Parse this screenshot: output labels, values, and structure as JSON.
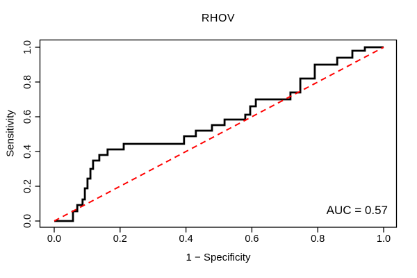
{
  "chart_data": {
    "type": "line",
    "title": "RHOV",
    "xlabel": "1 − Specificity",
    "ylabel": "Sensitivity",
    "annotation": "AUC = 0.57",
    "auc_value": 0.57,
    "xlim": [
      0.0,
      1.0
    ],
    "ylim": [
      0.0,
      1.0
    ],
    "grid": false,
    "legend_position": "none",
    "background_color": "#ffffff",
    "axis_color": "#000000",
    "x_ticks": {
      "values": [
        0.0,
        0.2,
        0.4,
        0.6,
        0.8,
        1.0
      ],
      "labels": [
        "0.0",
        "0.2",
        "0.4",
        "0.6",
        "0.8",
        "1.0"
      ]
    },
    "y_ticks": {
      "values": [
        0.0,
        0.2,
        0.4,
        0.6,
        0.8,
        1.0
      ],
      "labels": [
        "0.0",
        "0.2",
        "0.4",
        "0.6",
        "0.8",
        "1.0"
      ]
    },
    "series": [
      {
        "name": "roc-curve",
        "color": "#000000",
        "style": "solid",
        "width": 2.8,
        "points": [
          [
            0.0,
            0.0
          ],
          [
            0.057,
            0.0
          ],
          [
            0.057,
            0.056
          ],
          [
            0.07,
            0.056
          ],
          [
            0.07,
            0.092
          ],
          [
            0.086,
            0.092
          ],
          [
            0.086,
            0.124
          ],
          [
            0.093,
            0.124
          ],
          [
            0.093,
            0.188
          ],
          [
            0.101,
            0.188
          ],
          [
            0.101,
            0.244
          ],
          [
            0.11,
            0.244
          ],
          [
            0.11,
            0.3
          ],
          [
            0.118,
            0.3
          ],
          [
            0.118,
            0.348
          ],
          [
            0.137,
            0.348
          ],
          [
            0.137,
            0.38
          ],
          [
            0.162,
            0.38
          ],
          [
            0.162,
            0.412
          ],
          [
            0.211,
            0.412
          ],
          [
            0.211,
            0.444
          ],
          [
            0.394,
            0.444
          ],
          [
            0.394,
            0.488
          ],
          [
            0.43,
            0.488
          ],
          [
            0.43,
            0.52
          ],
          [
            0.479,
            0.52
          ],
          [
            0.479,
            0.552
          ],
          [
            0.517,
            0.552
          ],
          [
            0.517,
            0.584
          ],
          [
            0.58,
            0.584
          ],
          [
            0.58,
            0.612
          ],
          [
            0.595,
            0.612
          ],
          [
            0.595,
            0.66
          ],
          [
            0.612,
            0.66
          ],
          [
            0.612,
            0.7
          ],
          [
            0.717,
            0.7
          ],
          [
            0.717,
            0.74
          ],
          [
            0.747,
            0.74
          ],
          [
            0.747,
            0.82
          ],
          [
            0.791,
            0.82
          ],
          [
            0.791,
            0.9
          ],
          [
            0.859,
            0.9
          ],
          [
            0.859,
            0.94
          ],
          [
            0.905,
            0.94
          ],
          [
            0.905,
            0.98
          ],
          [
            0.943,
            0.98
          ],
          [
            0.943,
            1.0
          ],
          [
            1.0,
            1.0
          ]
        ]
      },
      {
        "name": "chance-diagonal",
        "color": "#FF0000",
        "style": "dashed",
        "width": 2,
        "points": [
          [
            0.0,
            0.0
          ],
          [
            1.0,
            1.0
          ]
        ]
      }
    ]
  }
}
